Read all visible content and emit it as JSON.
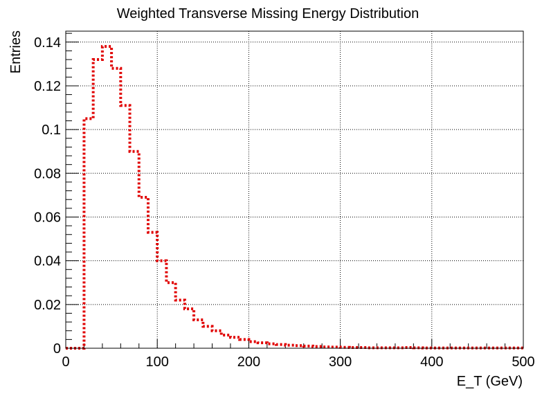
{
  "chart_data": {
    "type": "line",
    "title": "Weighted Transverse Missing Energy Distribution",
    "xlabel": "E_T (GeV)",
    "ylabel": "Entries",
    "xlim": [
      0,
      500
    ],
    "ylim": [
      0,
      0.145
    ],
    "grid": true,
    "line_style": "dotted step histogram",
    "x_ticks": [
      {
        "value": 0,
        "label": "0"
      },
      {
        "value": 100,
        "label": "100"
      },
      {
        "value": 200,
        "label": "200"
      },
      {
        "value": 300,
        "label": "300"
      },
      {
        "value": 400,
        "label": "400"
      },
      {
        "value": 500,
        "label": "500"
      }
    ],
    "y_ticks": [
      {
        "value": 0,
        "label": "0"
      },
      {
        "value": 0.02,
        "label": "0.02"
      },
      {
        "value": 0.04,
        "label": "0.04"
      },
      {
        "value": 0.06,
        "label": "0.06"
      },
      {
        "value": 0.08,
        "label": "0.08"
      },
      {
        "value": 0.1,
        "label": "0.1"
      },
      {
        "value": 0.12,
        "label": "0.12"
      },
      {
        "value": 0.14,
        "label": "0.14"
      }
    ],
    "series": [
      {
        "color": "#e00000",
        "bin_edges": [
          0,
          10,
          20,
          30,
          40,
          50,
          60,
          70,
          80,
          90,
          100,
          110,
          120,
          130,
          140,
          150,
          160,
          170,
          180,
          190,
          200,
          210,
          220,
          230,
          240,
          250,
          260,
          270,
          280,
          290,
          300,
          310,
          320,
          330,
          340,
          350,
          360,
          370,
          380,
          390,
          400,
          410,
          420,
          430,
          440,
          450,
          460,
          470,
          480,
          490,
          500
        ],
        "values": [
          0,
          0,
          0.105,
          0.132,
          0.138,
          0.128,
          0.111,
          0.09,
          0.069,
          0.053,
          0.04,
          0.03,
          0.022,
          0.018,
          0.013,
          0.01,
          0.008,
          0.006,
          0.005,
          0.004,
          0.003,
          0.0025,
          0.002,
          0.0017,
          0.0014,
          0.0012,
          0.001,
          0.0008,
          0.0006,
          0.0005,
          0.0004,
          0.0003,
          0.0003,
          0.0002,
          0.0002,
          0.0002,
          0.0002,
          0.0003,
          0.0002,
          0.0001,
          0.0001,
          0.0001,
          0.0001,
          0.0001,
          0.0001,
          0.0001,
          0.0001,
          0.0001,
          0.0001,
          0.0001
        ]
      }
    ]
  }
}
